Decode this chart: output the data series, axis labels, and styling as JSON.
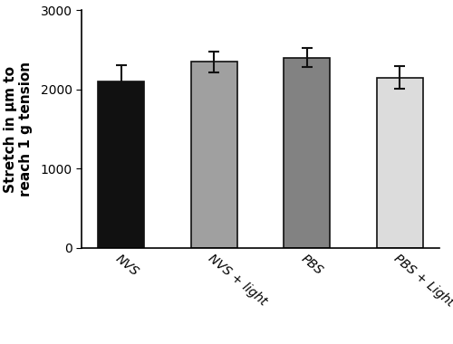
{
  "categories": [
    "NVS",
    "NVS + light",
    "PBS",
    "PBS + Light"
  ],
  "values": [
    2100,
    2350,
    2400,
    2150
  ],
  "errors": [
    210,
    130,
    120,
    140
  ],
  "bar_colors": [
    "#111111",
    "#a0a0a0",
    "#828282",
    "#dcdcdc"
  ],
  "bar_edgecolor": "#111111",
  "ylabel": "Stretch in μm to\nreach 1 g tension",
  "ylim": [
    0,
    3000
  ],
  "yticks": [
    0,
    1000,
    2000,
    3000
  ],
  "bar_width": 0.5,
  "capsize": 4,
  "error_linewidth": 1.5,
  "background_color": "#ffffff",
  "tick_label_fontsize": 10,
  "ylabel_fontsize": 11,
  "xtick_rotation": -40,
  "figsize": [
    5.0,
    3.8
  ]
}
